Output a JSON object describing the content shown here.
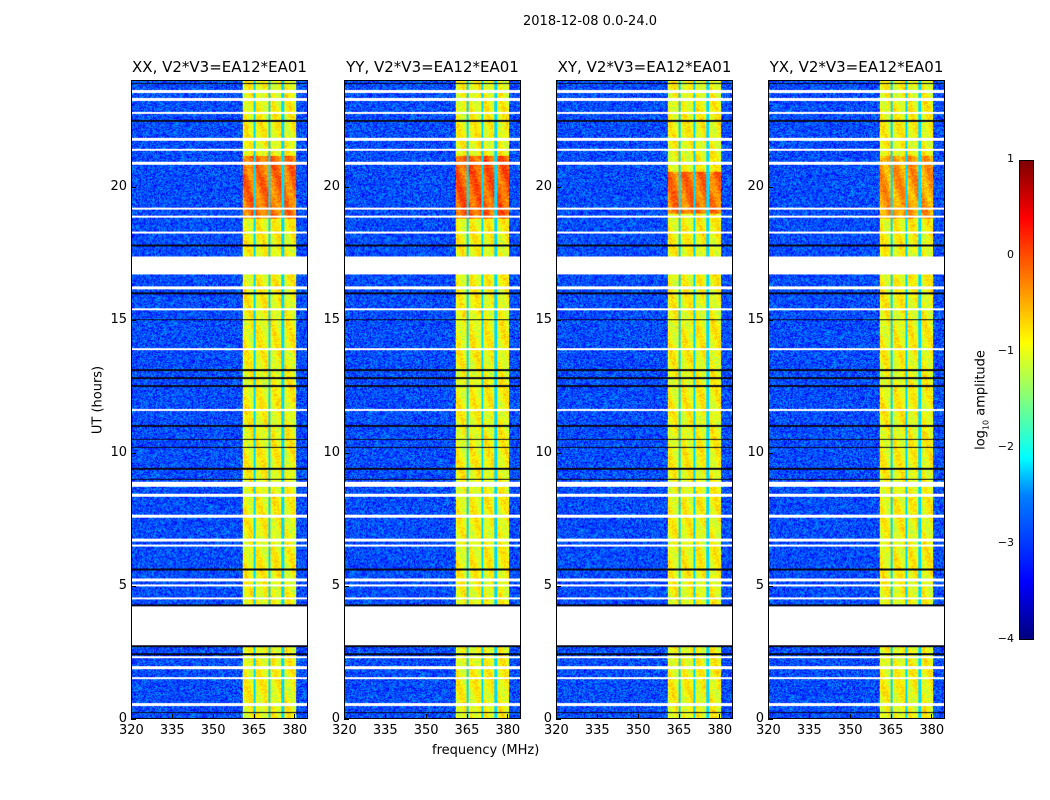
{
  "chart_data": {
    "type": "heatmap",
    "title": "2018-12-08 0.0-24.0",
    "xlabel": "frequency (MHz)",
    "ylabel": "UT (hours)",
    "xlim": [
      320,
      385
    ],
    "ylim": [
      0,
      24
    ],
    "xticks": [
      320,
      335,
      350,
      365,
      380
    ],
    "yticks": [
      0,
      5,
      10,
      15,
      20
    ],
    "panels": [
      {
        "title": "XX, V2*V3=EA12*EA01",
        "strong_band_hours": [
          18.8,
          21.2
        ],
        "strong_level": -0.2
      },
      {
        "title": "YY, V2*V3=EA12*EA01",
        "strong_band_hours": [
          18.8,
          21.2
        ],
        "strong_level": -0.1
      },
      {
        "title": "XY, V2*V3=EA12*EA01",
        "strong_band_hours": [
          19.0,
          20.6
        ],
        "strong_level": -0.2
      },
      {
        "title": "YX, V2*V3=EA12*EA01",
        "strong_band_hours": [
          18.8,
          21.2
        ],
        "strong_level": -0.4
      }
    ],
    "background_level": -3.0,
    "band_mhz": [
      361,
      381
    ],
    "band_level": -0.9,
    "band_dark_lines_mhz": [
      365.5,
      371,
      376
    ],
    "flagged_gaps_hours": [
      [
        16.7,
        17.4
      ],
      [
        2.75,
        4.2
      ],
      [
        8.7,
        8.9
      ]
    ],
    "white_lines_hours": [
      23.6,
      23.3,
      22.8,
      21.8,
      21.4,
      20.9,
      19.2,
      18.9,
      18.3,
      16.2,
      15.4,
      13.9,
      11.6,
      8.4,
      7.6,
      6.7,
      6.5,
      5.2,
      5.0,
      4.5,
      2.3,
      1.9,
      1.5,
      0.5
    ],
    "black_lines_hours": [
      23.9,
      22.5,
      17.8,
      16.0,
      15.0,
      13.1,
      12.8,
      12.5,
      11.0,
      10.5,
      10.2,
      9.4,
      9.0,
      5.6,
      4.25,
      2.7,
      2.4,
      0.2
    ],
    "colorbar": {
      "label_prefix": "log",
      "label_sub": "10",
      "label_suffix": " amplitude",
      "clim": [
        -4,
        1
      ],
      "ticks": [
        -4,
        -3,
        -2,
        -1,
        0,
        1
      ]
    }
  }
}
